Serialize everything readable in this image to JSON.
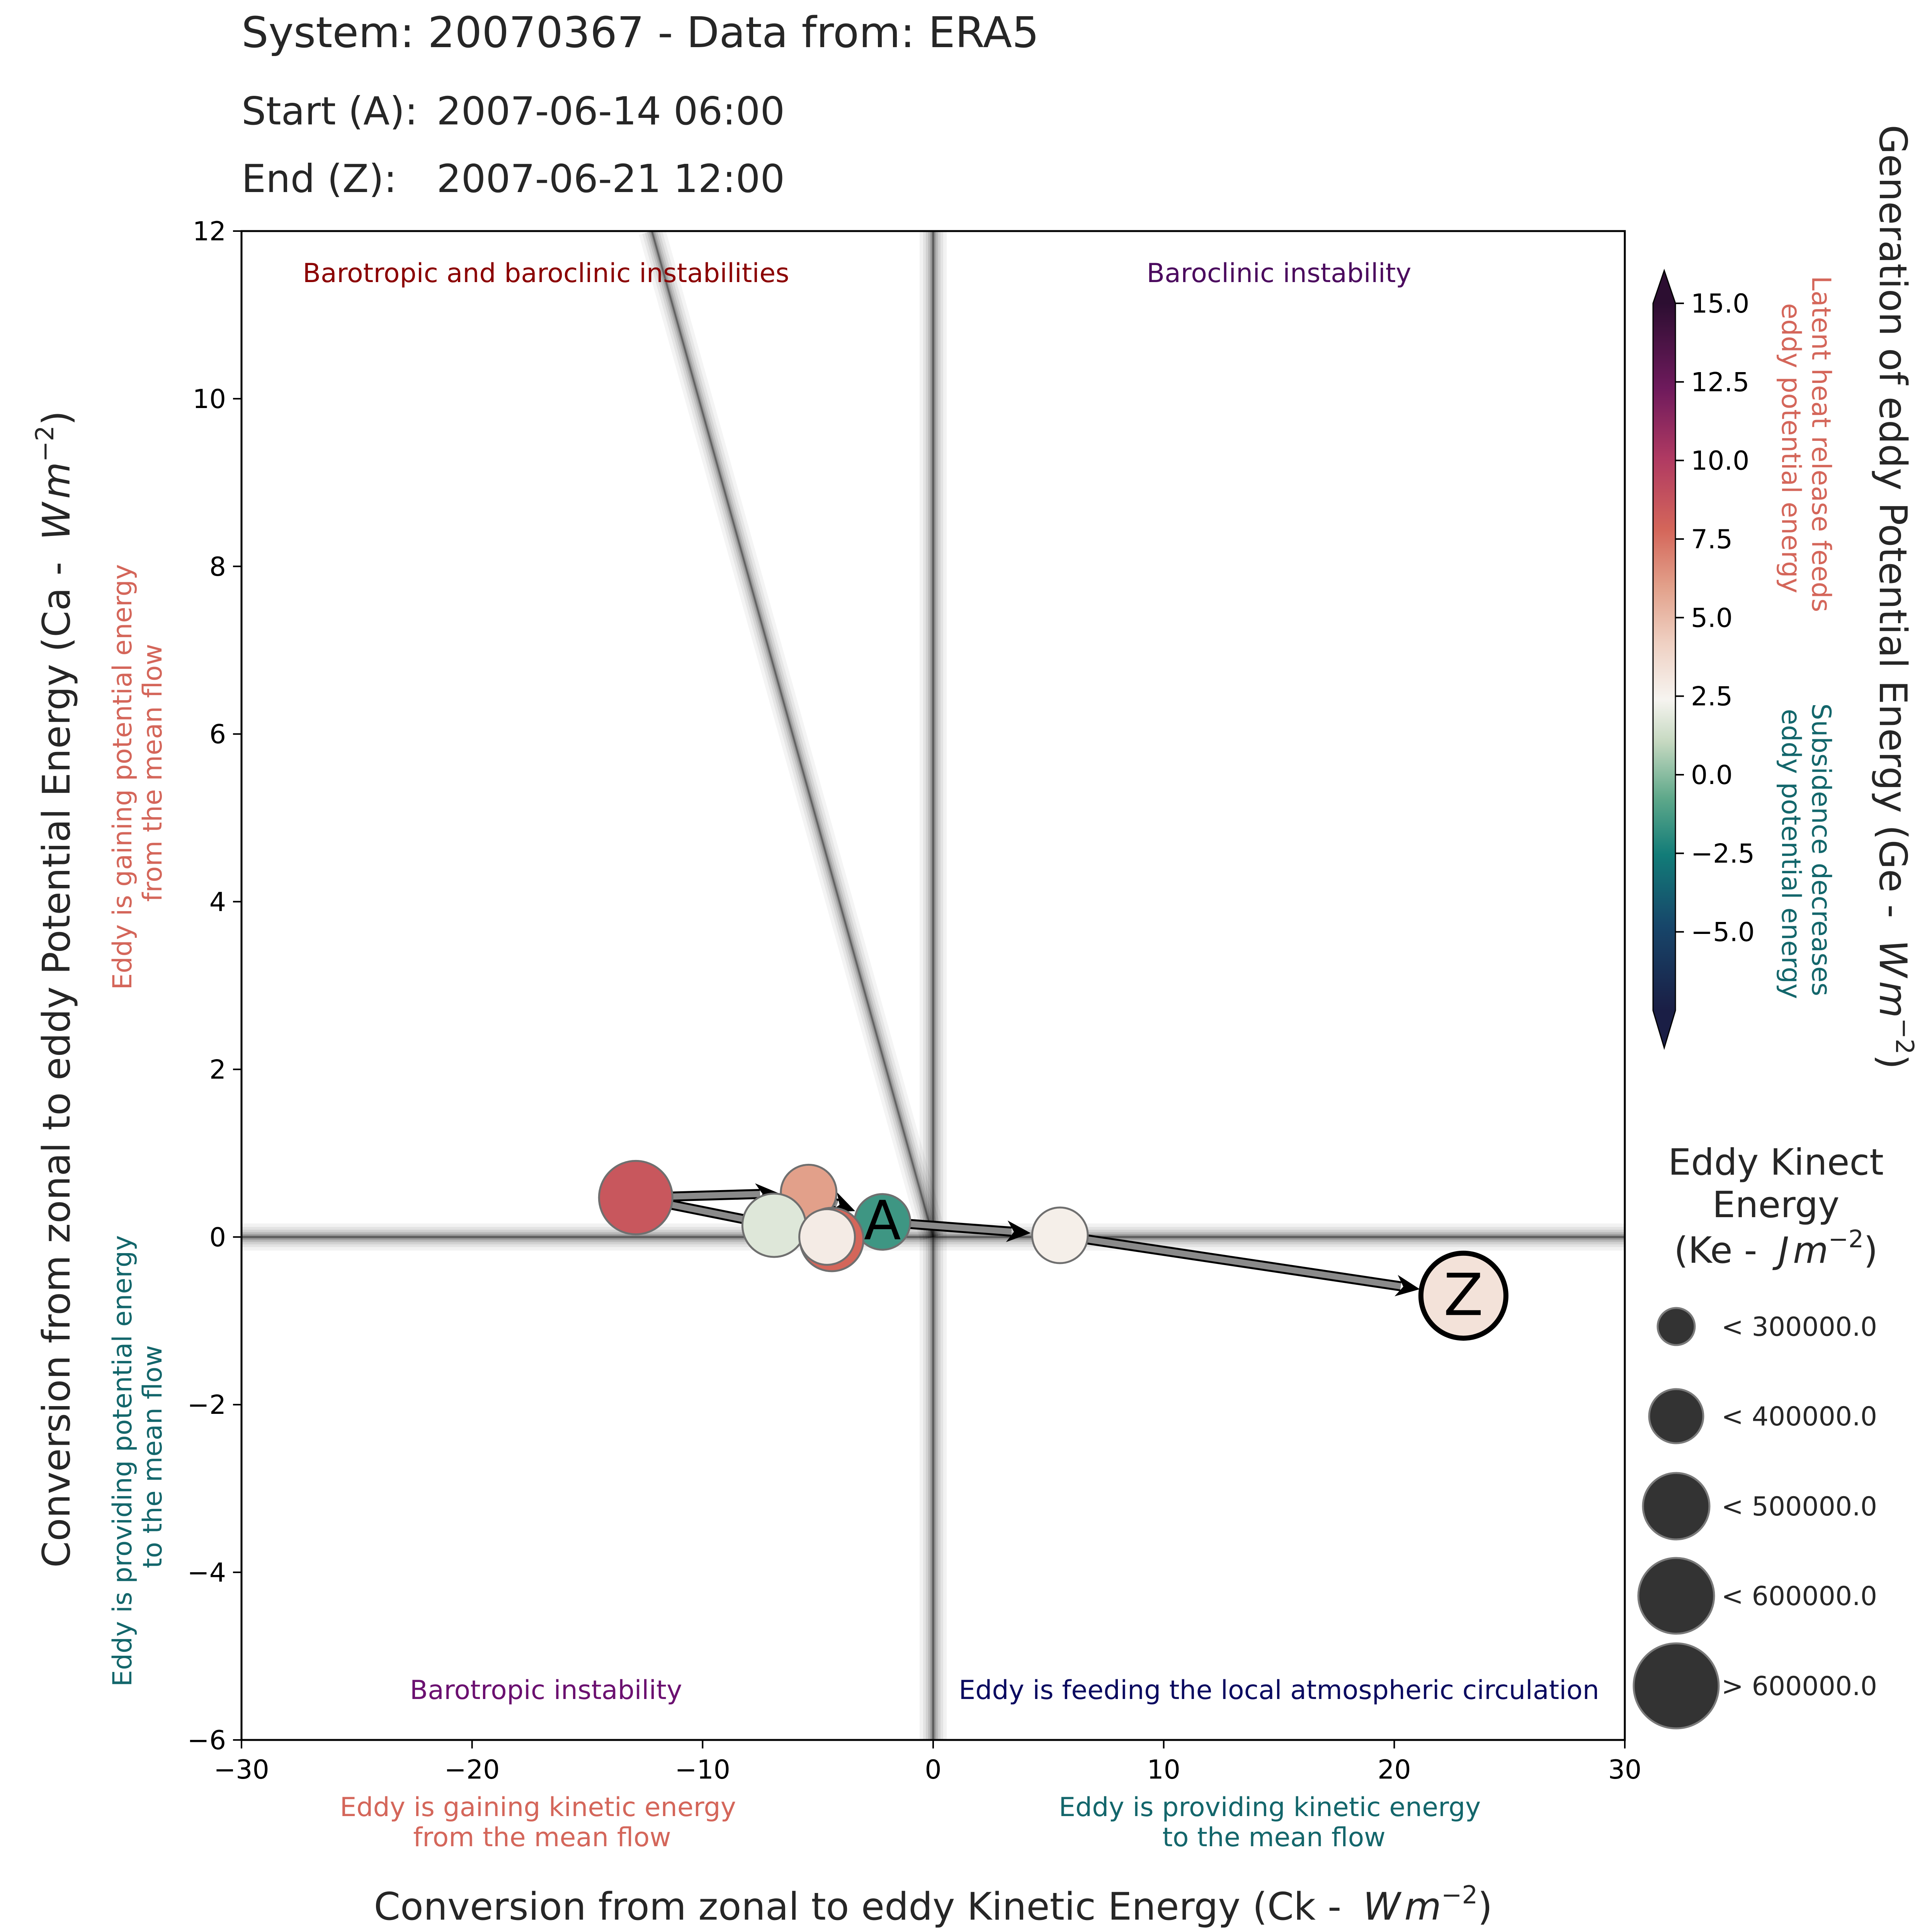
{
  "header": {
    "system_line": "System: 20070367 - Data from: ERA5",
    "start_label": "Start (A):",
    "start_value": "2007-06-14 06:00",
    "end_label": "End (Z):",
    "end_value": "2007-06-21 12:00"
  },
  "quadrants": {
    "top_left": "Barotropic and baroclinic instabilities",
    "top_right": "Baroclinic instability",
    "bottom_left": "Barotropic instability",
    "bottom_right": "Eddy is feeding the local atmospheric circulation"
  },
  "side_notes": {
    "y_positive": [
      "Eddy is gaining potential energy",
      "from the mean flow"
    ],
    "y_negative": [
      "Eddy is providing potential energy",
      "to the mean flow"
    ],
    "x_negative": [
      "Eddy is gaining kinetic energy",
      "from the mean flow"
    ],
    "x_positive": [
      "Eddy is providing kinetic energy",
      "to the mean flow"
    ],
    "colorbar_positive": [
      "Latent heat release feeds",
      "eddy potential energy"
    ],
    "colorbar_negative": [
      "Subsidence decreases",
      "eddy potential energy"
    ]
  },
  "colors": {
    "gaining": "#d4665a",
    "providing": "#13666b",
    "tl_label": "#8b0000",
    "tr_label": "#4b0a5e",
    "bl_label": "#6b1070",
    "br_label": "#0a0a60",
    "text": "#262626"
  },
  "chart_data": {
    "type": "scatter",
    "title": "System: 20070367 - Data from: ERA5",
    "xlabel": "Conversion from zonal to eddy Kinetic Energy (Ck -  Wm⁻²)",
    "ylabel": "Conversion from zonal to eddy Potential Energy (Ca -  Wm⁻²)",
    "xlim": [
      -30,
      30
    ],
    "ylim": [
      -6,
      12
    ],
    "xticks": [
      -30,
      -20,
      -10,
      0,
      10,
      20,
      30
    ],
    "xtick_labels": [
      "−30",
      "−20",
      "−10",
      "0",
      "10",
      "20",
      "30"
    ],
    "yticks": [
      -6,
      -4,
      -2,
      0,
      2,
      4,
      6,
      8,
      10,
      12
    ],
    "ytick_labels": [
      "−6",
      "−4",
      "−2",
      "0",
      "2",
      "4",
      "6",
      "8",
      "10",
      "12"
    ],
    "reference_line": {
      "slope": -1.0,
      "x_at_top": -12.2
    },
    "track": [
      {
        "label": "A",
        "ck": -2.2,
        "ca": 0.18,
        "ge": -2.5,
        "ke": 250000
      },
      {
        "label": "",
        "ck": -4.4,
        "ca": -0.03,
        "ge": 6.0,
        "ke": 320000
      },
      {
        "label": "",
        "ck": -4.6,
        "ca": 0.0,
        "ge": 0.5,
        "ke": 290000
      },
      {
        "label": "",
        "ck": -6.9,
        "ca": 0.14,
        "ge": -0.5,
        "ke": 330000
      },
      {
        "label": "",
        "ck": -5.4,
        "ca": 0.53,
        "ge": 4.0,
        "ke": 290000
      },
      {
        "label": "",
        "ck": -12.9,
        "ca": 0.47,
        "ge": 7.0,
        "ke": 420000
      },
      {
        "label": "",
        "ck": 5.5,
        "ca": 0.02,
        "ge": 0.3,
        "ke": 280000
      },
      {
        "label": "Z",
        "ck": 23.0,
        "ca": -0.7,
        "ge": 1.0,
        "ke": 500000
      }
    ],
    "arrows": [
      [
        5,
        4
      ],
      [
        4,
        0
      ],
      [
        0,
        6
      ],
      [
        6,
        7
      ]
    ],
    "links": [
      [
        0,
        1
      ],
      [
        1,
        3
      ],
      [
        3,
        5
      ]
    ],
    "colorbar": {
      "title": "Generation of eddy Potential Energy (Ge -  Wm⁻²)",
      "min": -7.5,
      "max": 15.0,
      "ticks": [
        15.0,
        12.5,
        10.0,
        7.5,
        5.0,
        2.5,
        0.0,
        -2.5,
        -5.0
      ],
      "tick_labels": [
        "15.0",
        "12.5",
        "10.0",
        "7.5",
        "5.0",
        "2.5",
        "0.0",
        "−2.5",
        "−5.0"
      ]
    },
    "size_legend": {
      "title_lines": [
        "Eddy Kinect",
        "Energy",
        "(Ke -  Jm⁻²)"
      ],
      "entries": [
        "< 300000.0",
        "< 400000.0",
        "< 500000.0",
        "< 600000.0",
        "> 600000.0"
      ]
    }
  }
}
